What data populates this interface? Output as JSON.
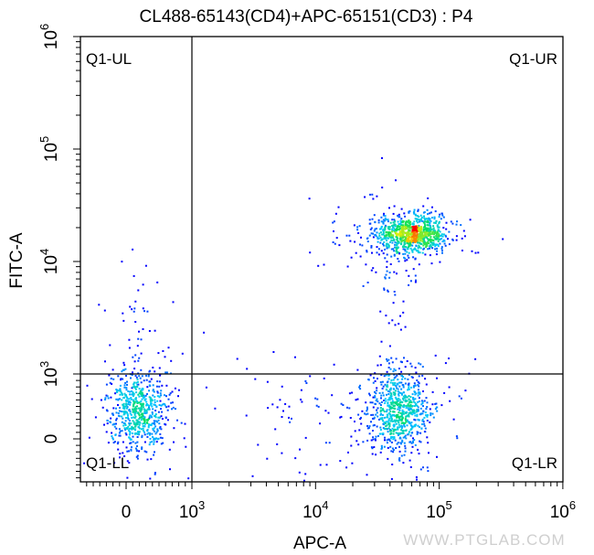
{
  "chart_data": {
    "type": "scatter",
    "title": "CL488-65143(CD4)+APC-65151(CD3) : P4",
    "xlabel": "APC-A",
    "ylabel": "FITC-A",
    "x_scale": "biexponential",
    "y_scale": "biexponential",
    "xlim": [
      -700,
      1000000
    ],
    "ylim": [
      -650,
      1000000
    ],
    "x_ticks": [
      {
        "label": "0",
        "value": 0
      },
      {
        "label": "10",
        "sup": "3",
        "value": 1000
      },
      {
        "label": "10",
        "sup": "4",
        "value": 10000
      },
      {
        "label": "10",
        "sup": "5",
        "value": 100000
      },
      {
        "label": "10",
        "sup": "6",
        "value": 1000000
      }
    ],
    "y_ticks": [
      {
        "label": "0",
        "value": 0
      },
      {
        "label": "10",
        "sup": "3",
        "value": 1000
      },
      {
        "label": "10",
        "sup": "4",
        "value": 10000
      },
      {
        "label": "10",
        "sup": "5",
        "value": 100000
      },
      {
        "label": "10",
        "sup": "6",
        "value": 1000000
      }
    ],
    "quadrant_gate": {
      "x": 1000,
      "y": 1000
    },
    "quadrants": {
      "ul": "Q1-UL",
      "ur": "Q1-UR",
      "ll": "Q1-LL",
      "lr": "Q1-LR"
    },
    "populations": [
      {
        "quadrant": "Q1-LL",
        "x_center": 170,
        "y_center": 420,
        "approx_events": 650
      },
      {
        "quadrant": "Q1-UR",
        "x_center": 59000,
        "y_center": 18000,
        "approx_events": 950
      },
      {
        "quadrant": "Q1-LR",
        "x_center": 46000,
        "y_center": 420,
        "approx_events": 750
      }
    ],
    "color_scale": [
      "#0000ff",
      "#00c8ff",
      "#00e060",
      "#f0f000",
      "#ff0000"
    ],
    "grid": false,
    "legend": "none"
  },
  "watermark": "WWW.PTGLAB.COM"
}
